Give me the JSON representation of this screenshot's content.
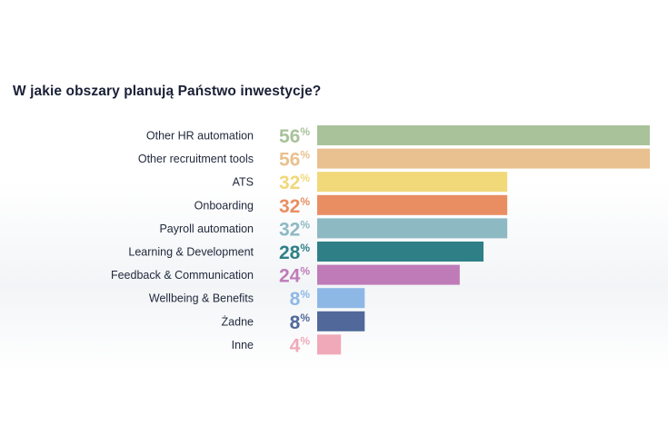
{
  "chart_data": {
    "type": "bar",
    "orientation": "horizontal",
    "title": "W jakie obszary planują Państwo inwestycje?",
    "categories": [
      "Other HR automation",
      "Other recruitment tools",
      "ATS",
      "Onboarding",
      "Payroll automation",
      "Learning & Development",
      "Feedback & Communication",
      "Wellbeing & Benefits",
      "Żadne",
      "Inne"
    ],
    "values": [
      56,
      56,
      32,
      32,
      32,
      28,
      24,
      8,
      8,
      4
    ],
    "value_suffix": "%",
    "colors": [
      "#a9c29a",
      "#e9c08f",
      "#f1d879",
      "#e98e62",
      "#8db9c2",
      "#2f7f87",
      "#bf7bb8",
      "#8db8e6",
      "#50699a",
      "#f0a9b8"
    ],
    "xlim": [
      0,
      56
    ],
    "grid": false,
    "legend": "none"
  }
}
